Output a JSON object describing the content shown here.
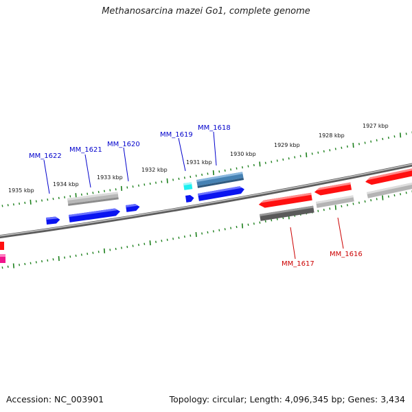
{
  "title": "Methanosarcina mazei Go1, complete genome",
  "footer": {
    "accession": "Accession: NC_003901",
    "summary": "Topology: circular; Length: 4,096,345 bp; Genes: 3,434"
  },
  "colors": {
    "backbone": "#808080",
    "tick": "#1b7f1b",
    "forward_label": "#0000cc",
    "reverse_label": "#cc0000",
    "blue": "#0a14f0",
    "cyan": "#1ef0f0",
    "steel": "#4682b4",
    "red": "#ff1010",
    "magenta": "#f0148c",
    "light_gray": "#b4b4b4",
    "dark_gray": "#5a5a5a"
  },
  "ruler_labels": [
    "1935 kbp",
    "1934 kbp",
    "1933 kbp",
    "1932 kbp",
    "1931 kbp",
    "1930 kbp",
    "1929 kbp",
    "1928 kbp",
    "1927 kbp"
  ],
  "gene_labels": {
    "forward": [
      "MM_1622",
      "MM_1621",
      "MM_1620",
      "MM_1619",
      "MM_1618"
    ],
    "reverse": [
      "MM_1617",
      "MM_1616"
    ]
  }
}
